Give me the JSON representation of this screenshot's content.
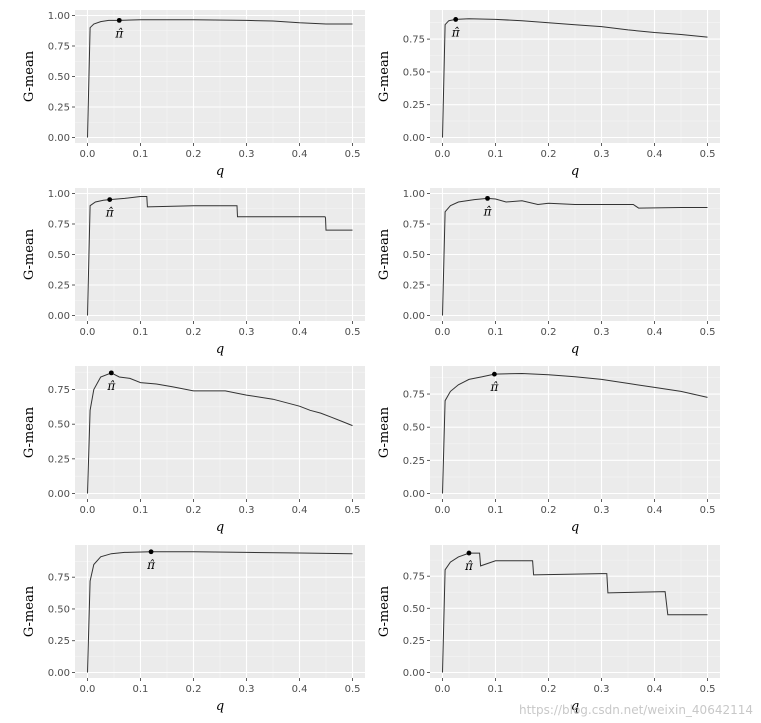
{
  "chart_data": [
    {
      "type": "line",
      "panel": 1,
      "xlabel": "q",
      "ylabel": "G-mean",
      "xticks": [
        "0.0",
        "0.1",
        "0.2",
        "0.3",
        "0.4",
        "0.5"
      ],
      "yticks": [
        "0.00",
        "0.25",
        "0.50",
        "0.75",
        "1.00"
      ],
      "xlim": [
        0,
        0.5
      ],
      "ylim": [
        0,
        1.0
      ],
      "marker": {
        "x": 0.06,
        "y": 0.96,
        "label": "π̂"
      },
      "x": [
        0,
        0.005,
        0.012,
        0.025,
        0.04,
        0.06,
        0.1,
        0.2,
        0.3,
        0.35,
        0.4,
        0.45,
        0.5
      ],
      "y": [
        0,
        0.9,
        0.93,
        0.95,
        0.96,
        0.96,
        0.965,
        0.965,
        0.96,
        0.955,
        0.94,
        0.93,
        0.93
      ]
    },
    {
      "type": "line",
      "panel": 2,
      "xlabel": "q",
      "ylabel": "G-mean",
      "xticks": [
        "0.0",
        "0.1",
        "0.2",
        "0.3",
        "0.4",
        "0.5"
      ],
      "yticks": [
        "0.00",
        "0.25",
        "0.50",
        "0.75"
      ],
      "xlim": [
        0,
        0.5
      ],
      "ylim": [
        0,
        0.93
      ],
      "marker": {
        "x": 0.025,
        "y": 0.9,
        "label": "π̂"
      },
      "x": [
        0,
        0.005,
        0.012,
        0.025,
        0.05,
        0.1,
        0.15,
        0.2,
        0.25,
        0.3,
        0.35,
        0.4,
        0.45,
        0.5
      ],
      "y": [
        0,
        0.86,
        0.89,
        0.9,
        0.905,
        0.9,
        0.89,
        0.875,
        0.86,
        0.845,
        0.82,
        0.8,
        0.785,
        0.765
      ]
    },
    {
      "type": "line",
      "panel": 3,
      "xlabel": "q",
      "ylabel": "G-mean",
      "xticks": [
        "0.0",
        "0.1",
        "0.2",
        "0.3",
        "0.4",
        "0.5"
      ],
      "yticks": [
        "0.00",
        "0.25",
        "0.50",
        "0.75",
        "1.00"
      ],
      "xlim": [
        0,
        0.5
      ],
      "ylim": [
        0,
        1.0
      ],
      "marker": {
        "x": 0.042,
        "y": 0.95,
        "label": "π̂"
      },
      "x": [
        0,
        0.005,
        0.015,
        0.03,
        0.042,
        0.07,
        0.1,
        0.112,
        0.113,
        0.2,
        0.28,
        0.282,
        0.283,
        0.448,
        0.449,
        0.45,
        0.5
      ],
      "y": [
        0,
        0.9,
        0.93,
        0.945,
        0.95,
        0.96,
        0.975,
        0.975,
        0.89,
        0.9,
        0.9,
        0.9,
        0.81,
        0.81,
        0.8,
        0.7,
        0.7
      ]
    },
    {
      "type": "line",
      "panel": 4,
      "xlabel": "q",
      "ylabel": "G-mean",
      "xticks": [
        "0.0",
        "0.1",
        "0.2",
        "0.3",
        "0.4",
        "0.5"
      ],
      "yticks": [
        "0.00",
        "0.25",
        "0.50",
        "0.75",
        "1.00"
      ],
      "xlim": [
        0,
        0.5
      ],
      "ylim": [
        0,
        1.0
      ],
      "marker": {
        "x": 0.085,
        "y": 0.96,
        "label": "π̂"
      },
      "x": [
        0,
        0.005,
        0.015,
        0.03,
        0.06,
        0.085,
        0.1,
        0.12,
        0.15,
        0.18,
        0.2,
        0.25,
        0.3,
        0.36,
        0.37,
        0.45,
        0.5
      ],
      "y": [
        0,
        0.85,
        0.9,
        0.93,
        0.95,
        0.96,
        0.955,
        0.93,
        0.94,
        0.91,
        0.92,
        0.91,
        0.91,
        0.91,
        0.88,
        0.885,
        0.885
      ]
    },
    {
      "type": "line",
      "panel": 5,
      "xlabel": "q",
      "ylabel": "G-mean",
      "xticks": [
        "0.0",
        "0.1",
        "0.2",
        "0.3",
        "0.4",
        "0.5"
      ],
      "yticks": [
        "0.00",
        "0.25",
        "0.50",
        "0.75"
      ],
      "xlim": [
        0,
        0.5
      ],
      "ylim": [
        0,
        0.88
      ],
      "marker": {
        "x": 0.045,
        "y": 0.87,
        "label": "π̂"
      },
      "x": [
        0,
        0.005,
        0.012,
        0.025,
        0.045,
        0.06,
        0.08,
        0.1,
        0.13,
        0.16,
        0.2,
        0.26,
        0.3,
        0.35,
        0.4,
        0.42,
        0.44,
        0.46,
        0.48,
        0.5
      ],
      "y": [
        0,
        0.6,
        0.75,
        0.84,
        0.87,
        0.84,
        0.83,
        0.8,
        0.79,
        0.77,
        0.74,
        0.74,
        0.71,
        0.68,
        0.63,
        0.6,
        0.58,
        0.55,
        0.52,
        0.49
      ]
    },
    {
      "type": "line",
      "panel": 6,
      "xlabel": "q",
      "ylabel": "G-mean",
      "xticks": [
        "0.0",
        "0.1",
        "0.2",
        "0.3",
        "0.4",
        "0.5"
      ],
      "yticks": [
        "0.00",
        "0.25",
        "0.50",
        "0.75"
      ],
      "xlim": [
        0,
        0.5
      ],
      "ylim": [
        0,
        0.92
      ],
      "marker": {
        "x": 0.098,
        "y": 0.9,
        "label": "π̂"
      },
      "x": [
        0,
        0.005,
        0.015,
        0.03,
        0.05,
        0.075,
        0.098,
        0.15,
        0.2,
        0.25,
        0.3,
        0.35,
        0.4,
        0.45,
        0.5
      ],
      "y": [
        0,
        0.7,
        0.77,
        0.82,
        0.86,
        0.88,
        0.9,
        0.905,
        0.895,
        0.88,
        0.86,
        0.83,
        0.8,
        0.77,
        0.725
      ]
    },
    {
      "type": "line",
      "panel": 7,
      "xlabel": "q",
      "ylabel": "G-mean",
      "xticks": [
        "0.0",
        "0.1",
        "0.2",
        "0.3",
        "0.4",
        "0.5"
      ],
      "yticks": [
        "0.00",
        "0.25",
        "0.50",
        "0.75"
      ],
      "xlim": [
        0,
        0.5
      ],
      "ylim": [
        0,
        0.96
      ],
      "marker": {
        "x": 0.12,
        "y": 0.95,
        "label": "π̂"
      },
      "x": [
        0,
        0.005,
        0.012,
        0.025,
        0.045,
        0.07,
        0.12,
        0.2,
        0.3,
        0.4,
        0.5
      ],
      "y": [
        0,
        0.72,
        0.85,
        0.91,
        0.935,
        0.945,
        0.95,
        0.95,
        0.945,
        0.94,
        0.935
      ]
    },
    {
      "type": "line",
      "panel": 8,
      "xlabel": "q",
      "ylabel": "G-mean",
      "xticks": [
        "0.0",
        "0.1",
        "0.2",
        "0.3",
        "0.4",
        "0.5"
      ],
      "yticks": [
        "0.00",
        "0.25",
        "0.50",
        "0.75"
      ],
      "xlim": [
        0,
        0.5
      ],
      "ylim": [
        0,
        0.95
      ],
      "marker": {
        "x": 0.05,
        "y": 0.93,
        "label": "π̂"
      },
      "x": [
        0,
        0.005,
        0.015,
        0.03,
        0.05,
        0.07,
        0.072,
        0.1,
        0.17,
        0.172,
        0.3,
        0.31,
        0.312,
        0.42,
        0.425,
        0.5
      ],
      "y": [
        0,
        0.8,
        0.86,
        0.9,
        0.93,
        0.93,
        0.83,
        0.87,
        0.87,
        0.76,
        0.77,
        0.77,
        0.62,
        0.63,
        0.45,
        0.45
      ]
    }
  ],
  "watermark": "https://blog.csdn.net/weixin_40642114"
}
